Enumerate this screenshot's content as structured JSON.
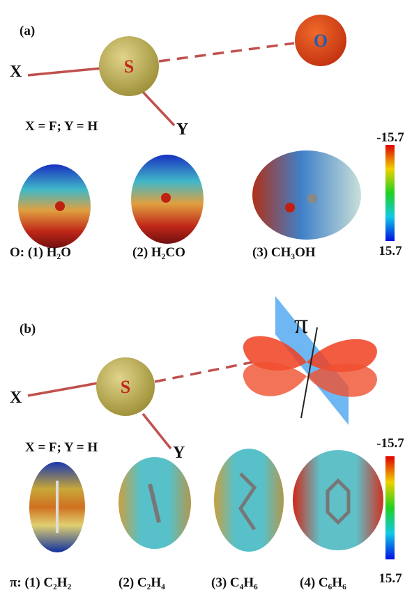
{
  "panel_a": {
    "label": "(a)",
    "center": "S",
    "partner": "O",
    "x_label": "X",
    "y_label": "Y",
    "substituents": "X = F; Y = H",
    "colorbar": {
      "top": -15.7,
      "bottom": 15.7
    },
    "molecules": [
      "O: (1) H₂O",
      "(2) H₂CO",
      "(3) CH₃OH"
    ]
  },
  "panel_b": {
    "label": "(b)",
    "center": "S",
    "partner": "π",
    "x_label": "X",
    "y_label": "Y",
    "substituents": "X = F; Y = H",
    "colorbar": {
      "top": -15.7,
      "bottom": 15.7
    },
    "molecules": [
      "π:  (1) C₂H₂",
      "(2) C₂H₄",
      "(3) C₄H₆",
      "(4) C₆H₆"
    ]
  }
}
